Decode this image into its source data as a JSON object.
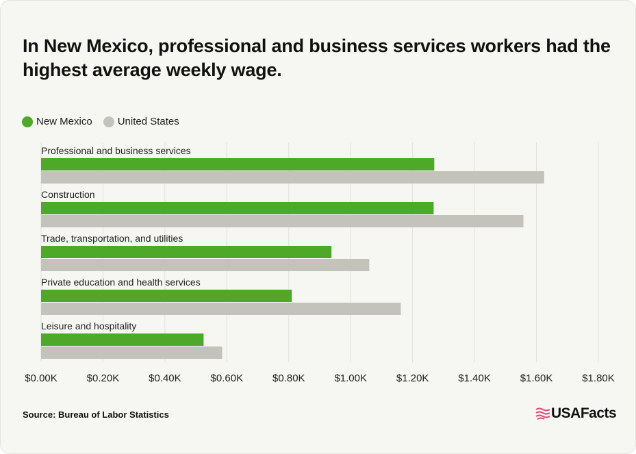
{
  "title": "In New Mexico, professional and business services workers had the highest average weekly wage.",
  "legend": [
    {
      "label": "New Mexico",
      "color": "#4ea829"
    },
    {
      "label": "United States",
      "color": "#c3c3bc"
    }
  ],
  "source": "Source: Bureau of Labor Statistics",
  "logo": {
    "text": "USAFacts",
    "icon": "usa-flag-icon",
    "color": "#e2477a"
  },
  "chart_data": {
    "type": "bar",
    "orientation": "horizontal",
    "categories": [
      "Professional and business services",
      "Construction",
      "Trade, transportation, and utilities",
      "Private education and health services",
      "Leisure and hospitality"
    ],
    "series": [
      {
        "name": "New Mexico",
        "color": "#4ea829",
        "values": [
          1270,
          1268,
          938,
          810,
          525
        ]
      },
      {
        "name": "United States",
        "color": "#c3c3bc",
        "values": [
          1625,
          1558,
          1060,
          1162,
          585
        ]
      }
    ],
    "xlim": [
      0,
      1800
    ],
    "ticks": [
      0,
      200,
      400,
      600,
      800,
      1000,
      1200,
      1400,
      1600,
      1800
    ],
    "tick_labels": [
      "$0.00K",
      "$0.20K",
      "$0.40K",
      "$0.60K",
      "$0.80K",
      "$1.00K",
      "$1.20K",
      "$1.40K",
      "$1.60K",
      "$1.80K"
    ],
    "grid": true,
    "legend_position": "top-left"
  }
}
